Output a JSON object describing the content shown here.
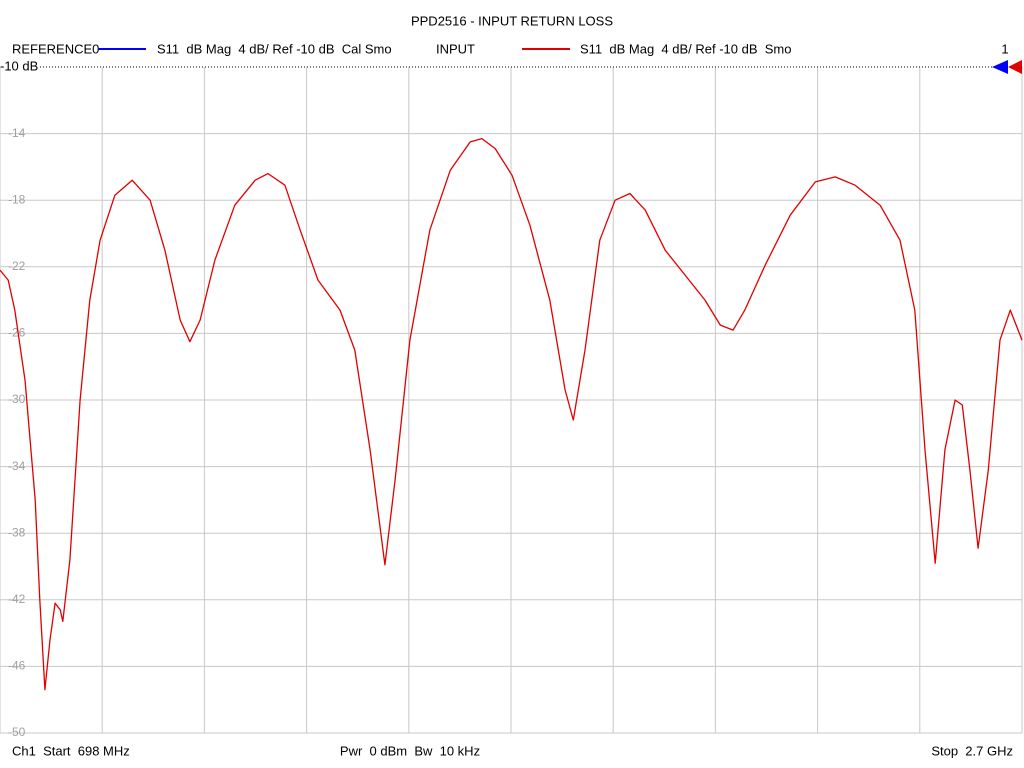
{
  "chart_data": {
    "type": "line",
    "title": "PPD2516 - INPUT RETURN LOSS",
    "channel": "1",
    "ref_label": "-10 dB",
    "footer_left": "Ch1  Start  698 MHz",
    "footer_center": "Pwr  0 dBm  Bw  10 kHz",
    "footer_right": "Stop  2.7 GHz",
    "xlim": [
      698,
      2700
    ],
    "ylim": [
      -50,
      -10
    ],
    "yticks": [
      -10,
      -14,
      -18,
      -22,
      -26,
      -30,
      -34,
      -38,
      -42,
      -46,
      -50
    ],
    "grid": true,
    "x": [
      698,
      714,
      727,
      747,
      767,
      776,
      786,
      796,
      806,
      816,
      821,
      835,
      855,
      874,
      894,
      923,
      957,
      992,
      1021,
      1051,
      1070,
      1090,
      1119,
      1158,
      1198,
      1223,
      1256,
      1286,
      1321,
      1364,
      1393,
      1423,
      1452,
      1472,
      1501,
      1540,
      1580,
      1619,
      1642,
      1668,
      1701,
      1736,
      1775,
      1805,
      1821,
      1844,
      1873,
      1903,
      1932,
      1962,
      2001,
      2040,
      2079,
      2109,
      2134,
      2157,
      2197,
      2246,
      2295,
      2334,
      2373,
      2422,
      2461,
      2490,
      2510,
      2530,
      2549,
      2569,
      2583,
      2598,
      2614,
      2634,
      2657,
      2677,
      2700
    ],
    "series": [
      {
        "name": "REFERENCE0",
        "color": "#0000ff",
        "format": "S11  dB Mag  4 dB/ Ref -10 dB  Cal Smo"
      },
      {
        "name": "INPUT",
        "color": "#e00000",
        "format": "S11  dB Mag  4 dB/ Ref -10 dB  Smo",
        "values": [
          -22.2,
          -22.8,
          -24.6,
          -28.8,
          -36.0,
          -42.0,
          -47.4,
          -44.4,
          -42.2,
          -42.6,
          -43.3,
          -39.6,
          -30.0,
          -24.0,
          -20.4,
          -17.7,
          -16.8,
          -18.0,
          -21.0,
          -25.2,
          -26.5,
          -25.2,
          -21.6,
          -18.3,
          -16.8,
          -16.4,
          -17.1,
          -19.8,
          -22.8,
          -24.6,
          -27.0,
          -33.0,
          -39.9,
          -34.8,
          -26.4,
          -19.8,
          -16.2,
          -14.5,
          -14.3,
          -14.9,
          -16.5,
          -19.5,
          -24.0,
          -29.4,
          -31.2,
          -27.0,
          -20.4,
          -18.0,
          -17.6,
          -18.6,
          -21.0,
          -22.5,
          -24.0,
          -25.5,
          -25.8,
          -24.6,
          -21.9,
          -18.9,
          -16.9,
          -16.6,
          -17.1,
          -18.3,
          -20.4,
          -24.6,
          -33.0,
          -39.8,
          -33.0,
          -30.0,
          -30.3,
          -34.2,
          -38.9,
          -34.2,
          -26.4,
          -24.6,
          -26.4
        ]
      }
    ]
  }
}
